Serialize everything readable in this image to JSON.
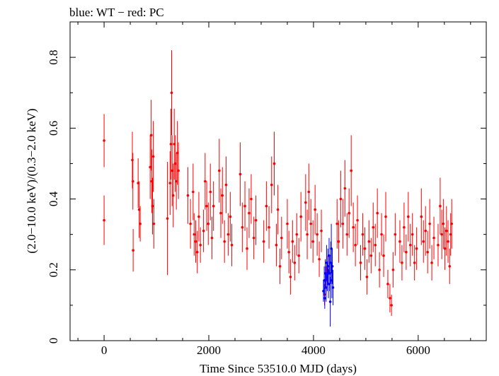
{
  "chart_data": {
    "type": "scatter",
    "title": "blue: WT − red: PC",
    "xlabel": "Time Since 53510.0 MJD (days)",
    "ylabel": "(2.0−10.0 keV)/(0.3−2.0 keV)",
    "xlim": [
      -650,
      7300
    ],
    "ylim": [
      0,
      0.9
    ],
    "x_ticks": [
      0,
      2000,
      4000,
      6000
    ],
    "y_ticks": [
      0,
      0.2,
      0.4,
      0.6,
      0.8
    ],
    "x_tick_labels": [
      "0",
      "2000",
      "4000",
      "6000"
    ],
    "y_tick_labels": [
      "0",
      "0.2",
      "0.4",
      "0.6",
      "0.8"
    ],
    "grid": false,
    "legend": "none",
    "series": [
      {
        "name": "PC",
        "color": "#ff0000",
        "points": [
          [
            0,
            0.565,
            0.075
          ],
          [
            0,
            0.34,
            0.07
          ],
          [
            540,
            0.51,
            0.08
          ],
          [
            550,
            0.45,
            0.08
          ],
          [
            555,
            0.255,
            0.06
          ],
          [
            650,
            0.445,
            0.07
          ],
          [
            670,
            0.37,
            0.08
          ],
          [
            690,
            0.33,
            0.05
          ],
          [
            880,
            0.49,
            0.09
          ],
          [
            900,
            0.58,
            0.1
          ],
          [
            910,
            0.45,
            0.09
          ],
          [
            925,
            0.38,
            0.08
          ],
          [
            940,
            0.52,
            0.1
          ],
          [
            950,
            0.33,
            0.07
          ],
          [
            1210,
            0.345,
            0.16
          ],
          [
            1260,
            0.445,
            0.09
          ],
          [
            1275,
            0.555,
            0.1
          ],
          [
            1290,
            0.7,
            0.12
          ],
          [
            1300,
            0.48,
            0.1
          ],
          [
            1320,
            0.41,
            0.09
          ],
          [
            1340,
            0.555,
            0.1
          ],
          [
            1360,
            0.5,
            0.08
          ],
          [
            1380,
            0.45,
            0.08
          ],
          [
            1400,
            0.53,
            0.09
          ],
          [
            1420,
            0.48,
            0.08
          ],
          [
            1600,
            0.41,
            0.08
          ],
          [
            1650,
            0.33,
            0.07
          ],
          [
            1700,
            0.42,
            0.08
          ],
          [
            1720,
            0.3,
            0.06
          ],
          [
            1750,
            0.28,
            0.06
          ],
          [
            1780,
            0.25,
            0.06
          ],
          [
            1810,
            0.35,
            0.07
          ],
          [
            1840,
            0.27,
            0.05
          ],
          [
            1900,
            0.31,
            0.06
          ],
          [
            1930,
            0.45,
            0.08
          ],
          [
            1960,
            0.38,
            0.07
          ],
          [
            1990,
            0.33,
            0.06
          ],
          [
            2030,
            0.42,
            0.08
          ],
          [
            2060,
            0.29,
            0.06
          ],
          [
            2090,
            0.38,
            0.07
          ],
          [
            2200,
            0.48,
            0.09
          ],
          [
            2230,
            0.36,
            0.07
          ],
          [
            2260,
            0.41,
            0.08
          ],
          [
            2300,
            0.28,
            0.06
          ],
          [
            2330,
            0.44,
            0.08
          ],
          [
            2370,
            0.3,
            0.06
          ],
          [
            2410,
            0.35,
            0.07
          ],
          [
            2440,
            0.27,
            0.06
          ],
          [
            2600,
            0.47,
            0.09
          ],
          [
            2640,
            0.32,
            0.07
          ],
          [
            2690,
            0.38,
            0.07
          ],
          [
            2730,
            0.26,
            0.06
          ],
          [
            2770,
            0.36,
            0.07
          ],
          [
            2810,
            0.4,
            0.07
          ],
          [
            2860,
            0.29,
            0.06
          ],
          [
            2900,
            0.34,
            0.07
          ],
          [
            3050,
            0.28,
            0.06
          ],
          [
            3100,
            0.38,
            0.07
          ],
          [
            3150,
            0.32,
            0.06
          ],
          [
            3200,
            0.44,
            0.08
          ],
          [
            3250,
            0.5,
            0.09
          ],
          [
            3290,
            0.27,
            0.06
          ],
          [
            3320,
            0.37,
            0.07
          ],
          [
            3360,
            0.21,
            0.05
          ],
          [
            3390,
            0.29,
            0.06
          ],
          [
            3500,
            0.33,
            0.07
          ],
          [
            3530,
            0.25,
            0.06
          ],
          [
            3560,
            0.18,
            0.05
          ],
          [
            3600,
            0.28,
            0.06
          ],
          [
            3640,
            0.22,
            0.05
          ],
          [
            3680,
            0.3,
            0.06
          ],
          [
            3720,
            0.24,
            0.05
          ],
          [
            3760,
            0.35,
            0.07
          ],
          [
            3850,
            0.39,
            0.08
          ],
          [
            3880,
            0.3,
            0.07
          ],
          [
            3910,
            0.42,
            0.08
          ],
          [
            3950,
            0.33,
            0.07
          ],
          [
            3990,
            0.28,
            0.06
          ],
          [
            4030,
            0.37,
            0.07
          ],
          [
            4070,
            0.3,
            0.06
          ],
          [
            4110,
            0.23,
            0.05
          ],
          [
            4150,
            0.31,
            0.06
          ],
          [
            4210,
            0.13,
            0.03
          ],
          [
            4240,
            0.17,
            0.04
          ],
          [
            4270,
            0.2,
            0.04
          ],
          [
            4450,
            0.33,
            0.07
          ],
          [
            4480,
            0.28,
            0.06
          ],
          [
            4520,
            0.4,
            0.08
          ],
          [
            4560,
            0.33,
            0.07
          ],
          [
            4600,
            0.43,
            0.08
          ],
          [
            4640,
            0.3,
            0.06
          ],
          [
            4680,
            0.36,
            0.07
          ],
          [
            4720,
            0.48,
            0.1
          ],
          [
            4760,
            0.32,
            0.07
          ],
          [
            4800,
            0.27,
            0.06
          ],
          [
            4840,
            0.34,
            0.07
          ],
          [
            4900,
            0.22,
            0.05
          ],
          [
            4940,
            0.3,
            0.06
          ],
          [
            4980,
            0.26,
            0.06
          ],
          [
            5020,
            0.18,
            0.05
          ],
          [
            5060,
            0.28,
            0.06
          ],
          [
            5100,
            0.24,
            0.05
          ],
          [
            5140,
            0.32,
            0.07
          ],
          [
            5180,
            0.27,
            0.06
          ],
          [
            5220,
            0.36,
            0.07
          ],
          [
            5260,
            0.2,
            0.05
          ],
          [
            5300,
            0.3,
            0.06
          ],
          [
            5340,
            0.24,
            0.06
          ],
          [
            5380,
            0.35,
            0.07
          ],
          [
            5420,
            0.16,
            0.04
          ],
          [
            5460,
            0.12,
            0.04
          ],
          [
            5490,
            0.1,
            0.03
          ],
          [
            5520,
            0.2,
            0.05
          ],
          [
            5560,
            0.3,
            0.06
          ],
          [
            5650,
            0.28,
            0.06
          ],
          [
            5690,
            0.22,
            0.05
          ],
          [
            5730,
            0.32,
            0.07
          ],
          [
            5770,
            0.25,
            0.05
          ],
          [
            5810,
            0.35,
            0.07
          ],
          [
            5850,
            0.27,
            0.06
          ],
          [
            5890,
            0.3,
            0.06
          ],
          [
            5930,
            0.22,
            0.05
          ],
          [
            5970,
            0.26,
            0.06
          ],
          [
            6060,
            0.35,
            0.08
          ],
          [
            6100,
            0.28,
            0.06
          ],
          [
            6140,
            0.31,
            0.07
          ],
          [
            6180,
            0.25,
            0.06
          ],
          [
            6220,
            0.33,
            0.07
          ],
          [
            6260,
            0.22,
            0.05
          ],
          [
            6300,
            0.29,
            0.06
          ],
          [
            6380,
            0.27,
            0.06
          ],
          [
            6420,
            0.38,
            0.08
          ],
          [
            6450,
            0.3,
            0.07
          ],
          [
            6480,
            0.33,
            0.07
          ],
          [
            6510,
            0.26,
            0.06
          ],
          [
            6540,
            0.31,
            0.07
          ],
          [
            6570,
            0.28,
            0.06
          ],
          [
            6600,
            0.21,
            0.05
          ],
          [
            6620,
            0.3,
            0.06
          ],
          [
            6640,
            0.33,
            0.07
          ]
        ]
      },
      {
        "name": "WT",
        "color": "#0000ff",
        "points": [
          [
            4190,
            0.14,
            0.03
          ],
          [
            4205,
            0.17,
            0.04
          ],
          [
            4215,
            0.12,
            0.03
          ],
          [
            4225,
            0.19,
            0.04
          ],
          [
            4240,
            0.15,
            0.04
          ],
          [
            4250,
            0.22,
            0.05
          ],
          [
            4262,
            0.18,
            0.04
          ],
          [
            4275,
            0.21,
            0.05
          ],
          [
            4285,
            0.16,
            0.04
          ],
          [
            4298,
            0.24,
            0.05
          ],
          [
            4310,
            0.19,
            0.05
          ],
          [
            4320,
            0.11,
            0.07
          ],
          [
            4330,
            0.22,
            0.06
          ],
          [
            4340,
            0.26,
            0.07
          ],
          [
            4350,
            0.17,
            0.05
          ],
          [
            4360,
            0.21,
            0.05
          ],
          [
            4372,
            0.15,
            0.05
          ]
        ]
      }
    ]
  }
}
